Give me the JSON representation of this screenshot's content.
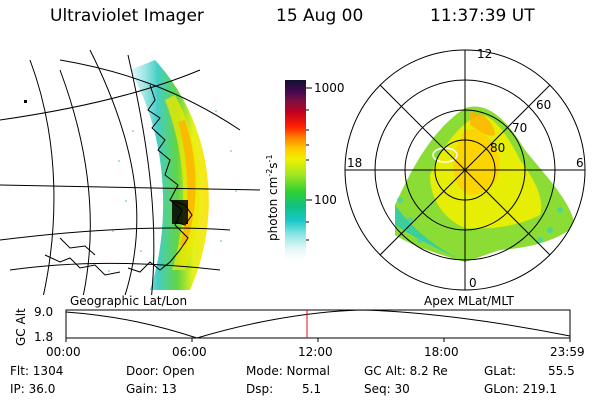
{
  "header": {
    "instrument": "Ultraviolet Imager",
    "date": "15 Aug 00",
    "time": "11:37:39 UT"
  },
  "colorbar": {
    "label": "photon cm",
    "label_exp1": "-2",
    "label_mid": "s",
    "label_exp2": "-1",
    "tick_top": "1000",
    "tick_mid": "100"
  },
  "polar_plot": {
    "mlt_labels": {
      "top": "12",
      "left": "18",
      "right": "6",
      "bottom": "0"
    },
    "lat_labels": [
      "60",
      "70",
      "80"
    ]
  },
  "panel_labels": {
    "left": "Geographic Lat/Lon",
    "right": "Apex MLat/MLT"
  },
  "orbit_plot": {
    "ylabel": "GC Alt",
    "y_top": "9.0",
    "y_bottom": "1.8",
    "x_ticks": [
      "00:00",
      "06:00",
      "12:00",
      "18:00",
      "23:59"
    ],
    "marker_color": "#d11"
  },
  "status": {
    "flt": "Flt: 1304",
    "ip": "IP: 36.0",
    "door": "Door: Open",
    "gain": "Gain: 13",
    "mode": "Mode: Normal",
    "dsp_label": "Dsp:",
    "dsp_value": "5.1",
    "gc_alt": "GC Alt: 8.2 Re",
    "seq": "Seq: 30",
    "glat": "GLat:",
    "glat_value": "55.5",
    "glon": "GLon: 219.1"
  }
}
